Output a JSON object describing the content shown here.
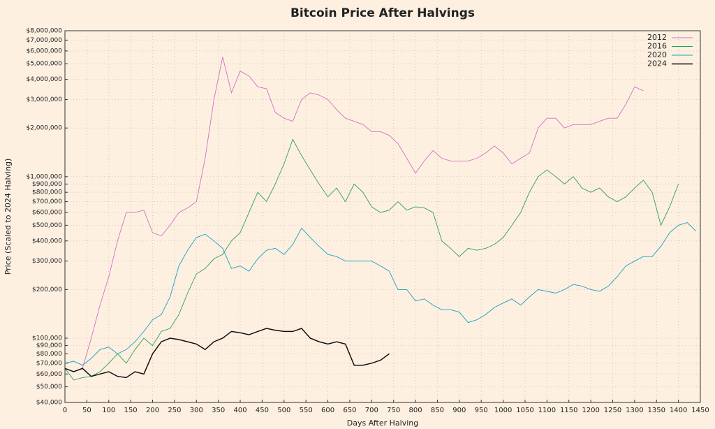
{
  "chart_data": {
    "type": "line",
    "title": "Bitcoin Price After Halvings",
    "xlabel": "Days After Halving",
    "ylabel": "Price (Scaled to 2024 Halving)",
    "yscale": "log",
    "grid": true,
    "legend": "upper right",
    "xlim": [
      0,
      1450
    ],
    "ylim": [
      40000,
      8000000
    ],
    "xticks": [
      0,
      50,
      100,
      150,
      200,
      250,
      300,
      350,
      400,
      450,
      500,
      550,
      600,
      650,
      700,
      750,
      800,
      850,
      900,
      950,
      1000,
      1050,
      1100,
      1150,
      1200,
      1250,
      1300,
      1350,
      1400,
      1450
    ],
    "yticks": [
      {
        "value": 40000,
        "label": "$40,000"
      },
      {
        "value": 50000,
        "label": "$50,000"
      },
      {
        "value": 60000,
        "label": "$60,000"
      },
      {
        "value": 70000,
        "label": "$70,000"
      },
      {
        "value": 80000,
        "label": "$80,000"
      },
      {
        "value": 90000,
        "label": "$90,000"
      },
      {
        "value": 100000,
        "label": "$100,000"
      },
      {
        "value": 200000,
        "label": "$200,000"
      },
      {
        "value": 300000,
        "label": "$300,000"
      },
      {
        "value": 400000,
        "label": "$400,000"
      },
      {
        "value": 500000,
        "label": "$500,000"
      },
      {
        "value": 600000,
        "label": "$600,000"
      },
      {
        "value": 700000,
        "label": "$700,000"
      },
      {
        "value": 800000,
        "label": "$800,000"
      },
      {
        "value": 900000,
        "label": "$900,000"
      },
      {
        "value": 1000000,
        "label": "$1,000,000"
      },
      {
        "value": 2000000,
        "label": "$2,000,000"
      },
      {
        "value": 3000000,
        "label": "$3,000,000"
      },
      {
        "value": 4000000,
        "label": "$4,000,000"
      },
      {
        "value": 5000000,
        "label": "$5,000,000"
      },
      {
        "value": 6000000,
        "label": "$6,000,000"
      },
      {
        "value": 7000000,
        "label": "$7,000,000"
      },
      {
        "value": 8000000,
        "label": "$8,000,000"
      }
    ],
    "x": [
      0,
      20,
      40,
      60,
      80,
      100,
      120,
      140,
      160,
      180,
      200,
      220,
      240,
      260,
      280,
      300,
      320,
      340,
      360,
      380,
      400,
      420,
      440,
      460,
      480,
      500,
      520,
      540,
      560,
      580,
      600,
      620,
      640,
      660,
      680,
      700,
      720,
      740,
      760,
      780,
      800,
      820,
      840,
      860,
      880,
      900,
      920,
      940,
      960,
      980,
      1000,
      1020,
      1040,
      1060,
      1080,
      1100,
      1120,
      1140,
      1160,
      1180,
      1200,
      1220,
      1240,
      1260,
      1280,
      1300,
      1320,
      1340,
      1360,
      1380,
      1400,
      1420,
      1440
    ],
    "series": [
      {
        "name": "2012",
        "color": "#d36fc6",
        "values": [
          null,
          null,
          65000,
          100000,
          160000,
          240000,
          400000,
          600000,
          600000,
          620000,
          450000,
          430000,
          500000,
          600000,
          640000,
          700000,
          1300000,
          3000000,
          5500000,
          3300000,
          4500000,
          4200000,
          3600000,
          3500000,
          2500000,
          2300000,
          2200000,
          3000000,
          3300000,
          3200000,
          3000000,
          2600000,
          2300000,
          2200000,
          2100000,
          1900000,
          1900000,
          1800000,
          1600000,
          1300000,
          1050000,
          1250000,
          1450000,
          1300000,
          1250000,
          1250000,
          1250000,
          1300000,
          1400000,
          1550000,
          1400000,
          1200000,
          1300000,
          1400000,
          2000000,
          2300000,
          2300000,
          2000000,
          2100000,
          2100000,
          2100000,
          2200000,
          2300000,
          2300000,
          2800000,
          3600000,
          3400000,
          null,
          null,
          null,
          null,
          null,
          null
        ]
      },
      {
        "name": "2016",
        "color": "#2e9e5b",
        "values": [
          65000,
          55000,
          57000,
          58000,
          62000,
          70000,
          80000,
          70000,
          85000,
          100000,
          90000,
          110000,
          115000,
          140000,
          190000,
          250000,
          270000,
          310000,
          330000,
          400000,
          450000,
          600000,
          800000,
          700000,
          900000,
          1200000,
          1700000,
          1350000,
          1100000,
          900000,
          750000,
          850000,
          700000,
          900000,
          800000,
          650000,
          600000,
          620000,
          700000,
          620000,
          650000,
          640000,
          600000,
          400000,
          360000,
          320000,
          360000,
          350000,
          360000,
          380000,
          420000,
          500000,
          600000,
          800000,
          1000000,
          1100000,
          1000000,
          900000,
          1000000,
          850000,
          800000,
          850000,
          750000,
          700000,
          750000,
          850000,
          950000,
          800000,
          500000,
          650000,
          900000,
          null,
          null
        ]
      },
      {
        "name": "2020",
        "color": "#1aa0c0",
        "values": [
          70000,
          72000,
          68000,
          75000,
          85000,
          88000,
          80000,
          85000,
          95000,
          110000,
          130000,
          140000,
          180000,
          280000,
          350000,
          420000,
          440000,
          400000,
          360000,
          270000,
          280000,
          260000,
          310000,
          350000,
          360000,
          330000,
          380000,
          480000,
          420000,
          370000,
          330000,
          320000,
          300000,
          300000,
          300000,
          300000,
          280000,
          260000,
          200000,
          200000,
          170000,
          175000,
          160000,
          150000,
          150000,
          145000,
          125000,
          130000,
          140000,
          155000,
          165000,
          175000,
          160000,
          180000,
          200000,
          195000,
          190000,
          200000,
          215000,
          210000,
          200000,
          195000,
          210000,
          240000,
          280000,
          300000,
          320000,
          320000,
          370000,
          450000,
          500000,
          520000,
          460000
        ]
      },
      {
        "name": "2024",
        "color": "#111111",
        "values": [
          65000,
          62000,
          65000,
          58000,
          60000,
          62000,
          58000,
          57000,
          62000,
          60000,
          80000,
          95000,
          100000,
          98000,
          95000,
          92000,
          85000,
          95000,
          100000,
          110000,
          108000,
          105000,
          110000,
          115000,
          112000,
          110000,
          110000,
          115000,
          100000,
          95000,
          92000,
          95000,
          92000,
          68000,
          68000,
          70000,
          73000,
          80000,
          null,
          null,
          null,
          null,
          null,
          null,
          null,
          null,
          null,
          null,
          null,
          null,
          null,
          null,
          null,
          null,
          null,
          null,
          null,
          null,
          null,
          null,
          null,
          null,
          null,
          null,
          null,
          null,
          null,
          null,
          null,
          null,
          null,
          null,
          null
        ]
      }
    ]
  }
}
